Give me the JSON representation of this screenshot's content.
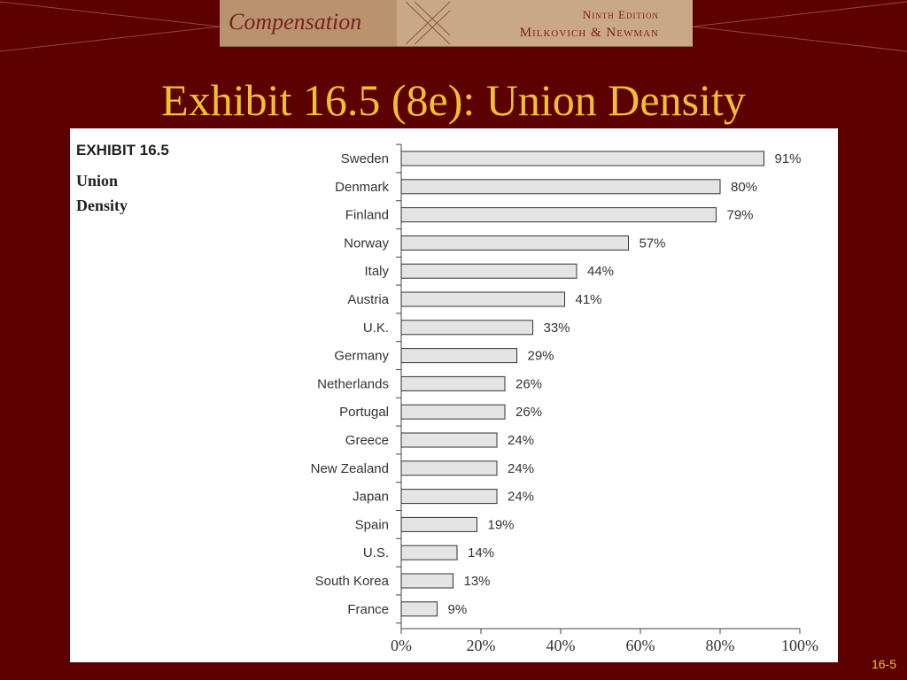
{
  "header": {
    "logo_text": "Compensation",
    "edition": "Ninth Edition",
    "authors": "Milkovich & Newman"
  },
  "slide": {
    "title": "Exhibit 16.5 (8e):  Union Density",
    "number": "16-5"
  },
  "exhibit": {
    "label": "EXHIBIT 16.5",
    "title_line1": "Union",
    "title_line2": "Density"
  },
  "colors": {
    "background": "#5c0000",
    "title": "#f0c030",
    "bar_fill": "#e4e4e4",
    "bar_stroke": "#333333"
  },
  "chart_data": {
    "type": "bar",
    "orientation": "horizontal",
    "categories": [
      "Sweden",
      "Denmark",
      "Finland",
      "Norway",
      "Italy",
      "Austria",
      "U.K.",
      "Germany",
      "Netherlands",
      "Portugal",
      "Greece",
      "New Zealand",
      "Japan",
      "Spain",
      "U.S.",
      "South Korea",
      "France"
    ],
    "values": [
      91,
      80,
      79,
      57,
      44,
      41,
      33,
      29,
      26,
      26,
      24,
      24,
      24,
      19,
      14,
      13,
      9
    ],
    "data_labels": [
      "91%",
      "80%",
      "79%",
      "57%",
      "44%",
      "41%",
      "33%",
      "29%",
      "26%",
      "26%",
      "24%",
      "24%",
      "24%",
      "19%",
      "14%",
      "13%",
      "9%"
    ],
    "ticks": [
      0,
      20,
      40,
      60,
      80,
      100
    ],
    "tick_labels": [
      "0%",
      "20%",
      "40%",
      "60%",
      "80%",
      "100%"
    ],
    "xlim": [
      0,
      100
    ],
    "grid": false
  }
}
